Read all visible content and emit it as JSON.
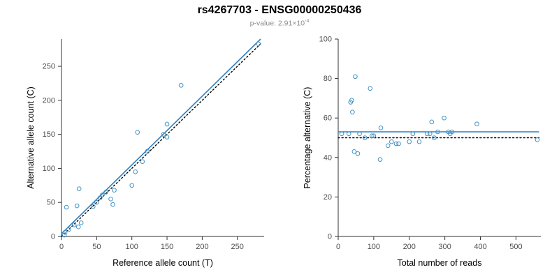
{
  "header": {
    "title": "rs4267703 - ENSG00000250436",
    "subtitle_prefix": "p-value: ",
    "subtitle_mantissa": "2.91×10",
    "subtitle_exponent": "-4"
  },
  "colors": {
    "accent_blue": "#2f7fc1",
    "point_blue": "#4292c6",
    "identity_black": "#000000"
  },
  "chart_data": [
    {
      "type": "scatter",
      "title": "",
      "xlabel": "Reference allele count (T)",
      "ylabel": "Alternative allele count (C)",
      "xlim": [
        0,
        288
      ],
      "ylim": [
        0,
        290
      ],
      "xticks": [
        0,
        50,
        100,
        150,
        200,
        250
      ],
      "yticks": [
        0,
        50,
        100,
        150,
        200,
        250
      ],
      "grid": false,
      "point_color": "#4292c6",
      "points": [
        [
          4,
          2
        ],
        [
          5,
          6
        ],
        [
          7,
          43
        ],
        [
          10,
          10
        ],
        [
          18,
          17
        ],
        [
          22,
          45
        ],
        [
          24,
          14
        ],
        [
          25,
          70
        ],
        [
          28,
          20
        ],
        [
          45,
          44
        ],
        [
          50,
          50
        ],
        [
          55,
          57
        ],
        [
          58,
          61
        ],
        [
          63,
          65
        ],
        [
          70,
          55
        ],
        [
          73,
          47
        ],
        [
          75,
          68
        ],
        [
          100,
          75
        ],
        [
          105,
          95
        ],
        [
          108,
          153
        ],
        [
          115,
          110
        ],
        [
          122,
          125
        ],
        [
          145,
          150
        ],
        [
          150,
          146
        ],
        [
          150,
          165
        ],
        [
          170,
          222
        ],
        [
          280,
          283
        ]
      ],
      "lines": [
        {
          "name": "regression-line",
          "style": "solid",
          "color": "#2f7fc1",
          "x1": 0,
          "y1": 4,
          "x2": 283,
          "y2": 290
        },
        {
          "name": "identity-line",
          "style": "dotted",
          "color": "#000000",
          "x1": 0,
          "y1": 0,
          "x2": 283,
          "y2": 283
        }
      ]
    },
    {
      "type": "scatter",
      "title": "",
      "xlabel": "Total number of reads",
      "ylabel": "Percentage alternative (C)",
      "xlim": [
        0,
        570
      ],
      "ylim": [
        0,
        100
      ],
      "xticks": [
        0,
        100,
        200,
        300,
        400,
        500
      ],
      "yticks": [
        0,
        20,
        40,
        60,
        80,
        100
      ],
      "grid": false,
      "point_color": "#4292c6",
      "points": [
        [
          10,
          52
        ],
        [
          30,
          52
        ],
        [
          35,
          68
        ],
        [
          38,
          69
        ],
        [
          40,
          63
        ],
        [
          45,
          43
        ],
        [
          48,
          81
        ],
        [
          55,
          42
        ],
        [
          60,
          52
        ],
        [
          75,
          50
        ],
        [
          90,
          75
        ],
        [
          95,
          51
        ],
        [
          100,
          51
        ],
        [
          118,
          39
        ],
        [
          120,
          55
        ],
        [
          140,
          46
        ],
        [
          150,
          48
        ],
        [
          163,
          47
        ],
        [
          170,
          47
        ],
        [
          200,
          48
        ],
        [
          210,
          52
        ],
        [
          228,
          48
        ],
        [
          250,
          52
        ],
        [
          258,
          52
        ],
        [
          263,
          58
        ],
        [
          270,
          50
        ],
        [
          280,
          53
        ],
        [
          298,
          60
        ],
        [
          310,
          53
        ],
        [
          315,
          52
        ],
        [
          320,
          53
        ],
        [
          390,
          57
        ],
        [
          560,
          49
        ]
      ],
      "lines": [
        {
          "name": "mean-line",
          "style": "solid",
          "color": "#2f7fc1",
          "x1": 0,
          "y1": 53,
          "x2": 565,
          "y2": 53
        },
        {
          "name": "expected-line",
          "style": "dotted",
          "color": "#000000",
          "x1": 0,
          "y1": 50,
          "x2": 565,
          "y2": 50
        }
      ]
    }
  ]
}
